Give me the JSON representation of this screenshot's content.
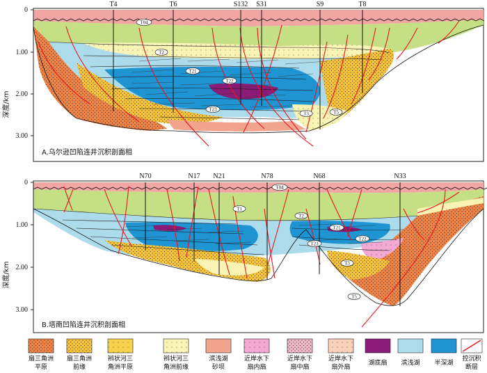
{
  "panel_a": {
    "title": "A.乌尔逊凹陷连井沉积剖面相",
    "y_axis_label": "深度/km",
    "depth_ticks": [
      "0",
      "1.00",
      "2.00",
      "3.00"
    ],
    "wells": [
      "T4",
      "T6",
      "S132",
      "S31",
      "S9",
      "T8"
    ],
    "horizons": [
      "T04",
      "T2",
      "T21",
      "T22",
      "T23",
      "T3",
      "T5"
    ]
  },
  "panel_b": {
    "title": "B.塔南凹陷连井沉积剖面相",
    "y_axis_label": "深度/km",
    "depth_ticks": [
      "0",
      "1.00",
      "2.00",
      "3.00"
    ],
    "wells": [
      "N70",
      "N17",
      "N21",
      "N78",
      "N68",
      "N33"
    ],
    "horizons": [
      "T04",
      "T1",
      "T2",
      "T21",
      "T22",
      "T23",
      "T3",
      "T5"
    ]
  },
  "legend": [
    {
      "line1": "扇三角洲",
      "line2": "平原",
      "color": "#f08447",
      "pattern": "dots"
    },
    {
      "line1": "扇三角洲",
      "line2": "前缘",
      "color": "#f8c43c",
      "pattern": "dots"
    },
    {
      "line1": "辫状河三",
      "line2": "角洲平原",
      "color": "#f6d24c",
      "pattern": "dots"
    },
    {
      "line1": "辫状河三",
      "line2": "角洲前缘",
      "color": "#faf4b4",
      "pattern": "dots"
    },
    {
      "line1": "滨浅湖",
      "line2": "砂坝",
      "color": "#f2a48e",
      "pattern": "none"
    },
    {
      "line1": "近岸水下",
      "line2": "扇内扇",
      "color": "#f4a8d4",
      "pattern": "dots"
    },
    {
      "line1": "近岸水下",
      "line2": "扇中扇",
      "color": "#f0b8c8",
      "pattern": "dots"
    },
    {
      "line1": "近岸水下",
      "line2": "扇外扇",
      "color": "#fad2bc",
      "pattern": "dots"
    },
    {
      "line1": "湖底扇",
      "line2": "",
      "color": "#8a1c78",
      "pattern": "none"
    },
    {
      "line1": "滨浅湖",
      "line2": "",
      "color": "#acdcec",
      "pattern": "none"
    },
    {
      "line1": "半深湖",
      "line2": "",
      "color": "#1e94d2",
      "pattern": "none"
    },
    {
      "line1": "控沉积",
      "line2": "断层",
      "color": "#e8141e",
      "pattern": "fault"
    }
  ]
}
